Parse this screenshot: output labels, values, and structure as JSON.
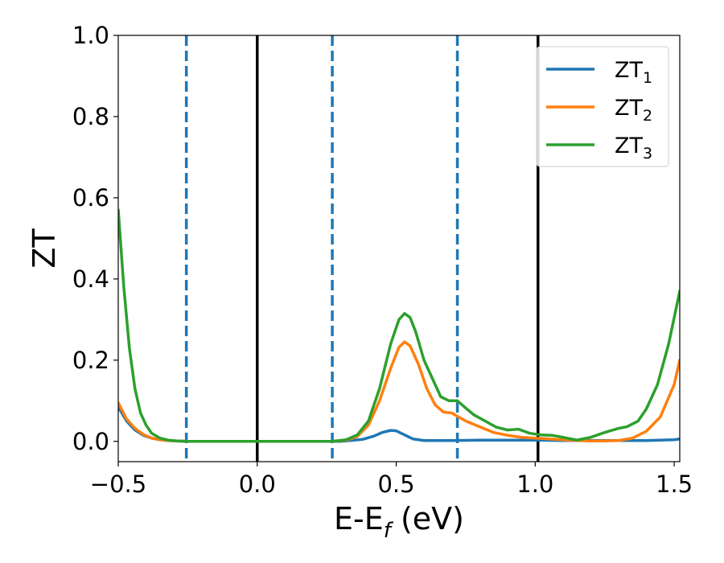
{
  "chart_data": {
    "type": "line",
    "xlabel": "E-E",
    "xlabel_sub": "f",
    "xlabel_unit": " (eV)",
    "ylabel": "ZT",
    "xlim": [
      -0.5,
      1.52
    ],
    "ylim": [
      -0.05,
      1.0
    ],
    "xticks": [
      -0.5,
      0.0,
      0.5,
      1.0,
      1.5
    ],
    "xtick_labels": [
      "−0.5",
      "0.0",
      "0.5",
      "1.0",
      "1.5"
    ],
    "yticks": [
      0.0,
      0.2,
      0.4,
      0.6,
      0.8,
      1.0
    ],
    "ytick_labels": [
      "0.0",
      "0.2",
      "0.4",
      "0.6",
      "0.8",
      "1.0"
    ],
    "grid": false,
    "legend_position": "top-right",
    "vlines_solid": [
      0.0,
      1.01
    ],
    "vlines_dashed": [
      -0.255,
      0.27,
      0.72
    ],
    "vline_solid_color": "#000000",
    "vline_dashed_color": "#1f77b4",
    "series": [
      {
        "name": "ZT",
        "sub": "1",
        "color": "#1f77b4",
        "x": [
          -0.5,
          -0.47,
          -0.44,
          -0.41,
          -0.38,
          -0.35,
          -0.32,
          -0.29,
          -0.25,
          -0.2,
          0.0,
          0.3,
          0.38,
          0.42,
          0.45,
          0.48,
          0.5,
          0.53,
          0.56,
          0.6,
          0.7,
          0.8,
          0.9,
          1.0,
          1.1,
          1.2,
          1.3,
          1.4,
          1.5,
          1.52
        ],
        "y": [
          0.085,
          0.05,
          0.028,
          0.015,
          0.008,
          0.004,
          0.002,
          0.001,
          0.0,
          0.0,
          0.0,
          0.0,
          0.005,
          0.013,
          0.022,
          0.027,
          0.026,
          0.016,
          0.006,
          0.002,
          0.002,
          0.003,
          0.003,
          0.003,
          0.002,
          0.002,
          0.002,
          0.002,
          0.004,
          0.006
        ]
      },
      {
        "name": "ZT",
        "sub": "2",
        "color": "#ff7f0e",
        "x": [
          -0.5,
          -0.47,
          -0.44,
          -0.41,
          -0.38,
          -0.35,
          -0.32,
          -0.29,
          -0.25,
          -0.2,
          0.0,
          0.27,
          0.32,
          0.36,
          0.4,
          0.44,
          0.48,
          0.51,
          0.53,
          0.55,
          0.58,
          0.61,
          0.64,
          0.67,
          0.7,
          0.72,
          0.75,
          0.8,
          0.85,
          0.9,
          0.95,
          1.0,
          1.05,
          1.1,
          1.15,
          1.2,
          1.25,
          1.3,
          1.35,
          1.4,
          1.45,
          1.5,
          1.52
        ],
        "y": [
          0.095,
          0.055,
          0.032,
          0.017,
          0.008,
          0.004,
          0.002,
          0.001,
          0.0,
          0.0,
          0.0,
          0.0,
          0.003,
          0.012,
          0.04,
          0.1,
          0.18,
          0.232,
          0.245,
          0.235,
          0.19,
          0.13,
          0.09,
          0.072,
          0.07,
          0.062,
          0.05,
          0.036,
          0.022,
          0.015,
          0.01,
          0.008,
          0.006,
          0.004,
          0.002,
          0.001,
          0.001,
          0.002,
          0.008,
          0.025,
          0.06,
          0.14,
          0.2
        ]
      },
      {
        "name": "ZT",
        "sub": "3",
        "color": "#2ca02c",
        "x": [
          -0.5,
          -0.48,
          -0.46,
          -0.44,
          -0.42,
          -0.4,
          -0.38,
          -0.35,
          -0.32,
          -0.29,
          -0.25,
          -0.2,
          0.0,
          0.27,
          0.32,
          0.36,
          0.4,
          0.44,
          0.48,
          0.51,
          0.53,
          0.55,
          0.57,
          0.6,
          0.63,
          0.66,
          0.69,
          0.72,
          0.75,
          0.78,
          0.82,
          0.86,
          0.9,
          0.94,
          0.98,
          1.02,
          1.06,
          1.1,
          1.15,
          1.2,
          1.25,
          1.3,
          1.33,
          1.37,
          1.4,
          1.44,
          1.48,
          1.52
        ],
        "y": [
          0.57,
          0.38,
          0.23,
          0.13,
          0.07,
          0.04,
          0.02,
          0.008,
          0.003,
          0.001,
          0.0,
          0.0,
          0.0,
          0.0,
          0.004,
          0.016,
          0.05,
          0.13,
          0.24,
          0.3,
          0.315,
          0.305,
          0.27,
          0.2,
          0.155,
          0.11,
          0.1,
          0.1,
          0.082,
          0.065,
          0.05,
          0.035,
          0.028,
          0.03,
          0.02,
          0.016,
          0.015,
          0.01,
          0.003,
          0.01,
          0.022,
          0.032,
          0.036,
          0.05,
          0.08,
          0.14,
          0.24,
          0.37
        ]
      }
    ]
  }
}
